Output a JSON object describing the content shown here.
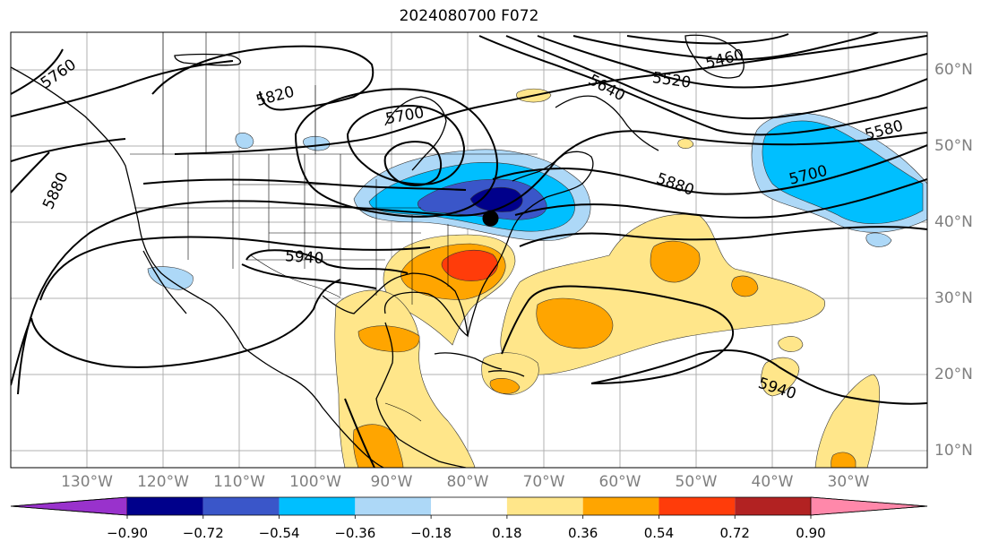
{
  "title": "2024080700 F072",
  "lat_labels": [
    {
      "value": 60,
      "text": "60°N"
    },
    {
      "value": 50,
      "text": "50°N"
    },
    {
      "value": 40,
      "text": "40°N"
    },
    {
      "value": 30,
      "text": "30°N"
    },
    {
      "value": 20,
      "text": "20°N"
    },
    {
      "value": 10,
      "text": "10°N"
    }
  ],
  "lon_labels": [
    {
      "value": -130,
      "text": "130°W"
    },
    {
      "value": -120,
      "text": "120°W"
    },
    {
      "value": -110,
      "text": "110°W"
    },
    {
      "value": -100,
      "text": "100°W"
    },
    {
      "value": -90,
      "text": "90°W"
    },
    {
      "value": -80,
      "text": "80°W"
    },
    {
      "value": -70,
      "text": "70°W"
    },
    {
      "value": -60,
      "text": "60°W"
    },
    {
      "value": -50,
      "text": "50°W"
    },
    {
      "value": -40,
      "text": "40°W"
    },
    {
      "value": -30,
      "text": "30°W"
    }
  ],
  "contour_labels": [
    "5460",
    "5520",
    "5580",
    "5640",
    "5700",
    "5760",
    "5820",
    "5880",
    "5940"
  ],
  "colorbar": {
    "ticks": [
      "−0.90",
      "−0.72",
      "−0.54",
      "−0.36",
      "−0.18",
      "0.18",
      "0.36",
      "0.54",
      "0.72",
      "0.90"
    ],
    "colors": [
      "#9932cc",
      "#00008b",
      "#3a56c9",
      "#00bfff",
      "#add8f7",
      "#ffffff",
      "#ffe68a",
      "#ffa500",
      "#ff3c0a",
      "#b22222",
      "#ff88aa"
    ]
  },
  "marker": {
    "lon": -77,
    "lat": 40.5,
    "color": "#000000"
  }
}
